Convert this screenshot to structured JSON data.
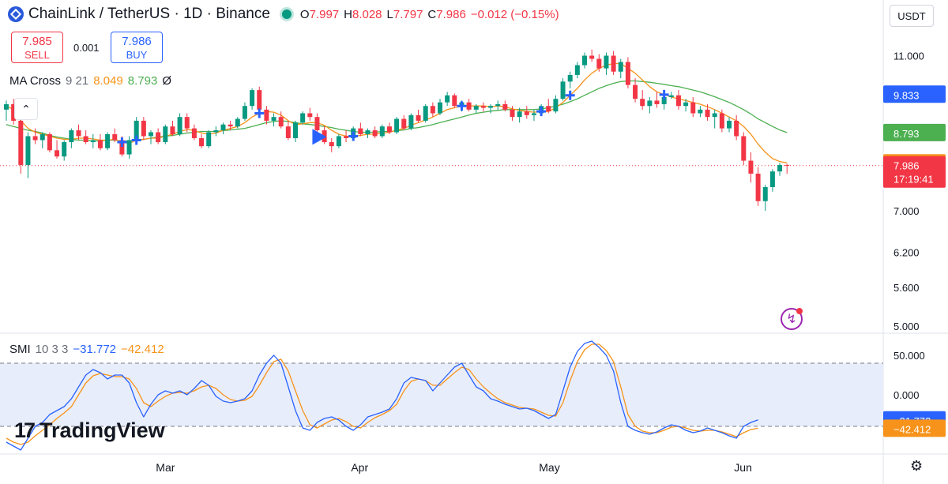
{
  "header": {
    "title": "ChainLink / TetherUS · 1D · Binance",
    "ohlc": [
      {
        "k": "O",
        "v": "7.997"
      },
      {
        "k": "H",
        "v": "8.028"
      },
      {
        "k": "L",
        "v": "7.797"
      },
      {
        "k": "C",
        "v": "7.986"
      },
      {
        "k": "",
        "v": "−0.012 (−0.15%)"
      }
    ],
    "currency": "USDT"
  },
  "trade": {
    "sell_price": "7.985",
    "sell_label": "SELL",
    "buy_price": "7.986",
    "buy_label": "BUY",
    "spread": "0.001"
  },
  "ma_legend": {
    "name": "MA Cross",
    "params": "9 21",
    "fast": "8.049",
    "slow": "8.793",
    "icon": "Ø"
  },
  "smi_legend": {
    "name": "SMI",
    "params": "10 3 3",
    "smi": "−31.772",
    "signal": "−42.412"
  },
  "brand": {
    "name": "TradingView",
    "mark": "17"
  },
  "icons": {
    "symbol": "chainlink-icon",
    "live": "live-dot-icon",
    "bolt": "bolt-icon",
    "settings": "gear-icon",
    "collapse": "chevron-up-icon"
  },
  "colors": {
    "up": "#089981",
    "down": "#f23645",
    "ma_fast": "#f7931a",
    "ma_slow": "#4caf50",
    "smi": "#2962ff",
    "signal": "#f7931a",
    "band": "#e8edfb"
  },
  "chart_data": [
    {
      "type": "candlestick",
      "title": "ChainLink / TetherUS · 1D · Binance",
      "x_labels": [
        "Mar",
        "Apr",
        "May",
        "Jun"
      ],
      "price_axis_ticks": [
        "11.000",
        "9.833",
        "7.000",
        "6.200",
        "5.600",
        "5.000"
      ],
      "log_scale": true,
      "ylim": [
        4.9,
        11.8
      ],
      "last_price": 7.986,
      "last_price_label": "7.986",
      "countdown": "17:19:41",
      "markers": [
        {
          "label": "9.833",
          "value": 9.833,
          "color": "#2962ff"
        },
        {
          "label": "8.793",
          "value": 8.793,
          "color": "#4caf50"
        },
        {
          "label": "8.049",
          "value": 8.049,
          "color": "#f7931a"
        }
      ],
      "candles": [
        [
          9.4,
          9.65,
          9.1,
          9.55
        ],
        [
          9.55,
          9.7,
          9.0,
          9.1
        ],
        [
          9.1,
          9.25,
          7.8,
          8.0
        ],
        [
          8.0,
          8.8,
          7.7,
          8.7
        ],
        [
          8.7,
          8.9,
          8.5,
          8.6
        ],
        [
          8.6,
          8.8,
          8.4,
          8.75
        ],
        [
          8.75,
          8.8,
          8.3,
          8.35
        ],
        [
          8.35,
          8.6,
          8.15,
          8.2
        ],
        [
          8.2,
          8.6,
          8.1,
          8.55
        ],
        [
          8.55,
          8.9,
          8.4,
          8.85
        ],
        [
          8.85,
          9.0,
          8.6,
          8.7
        ],
        [
          8.7,
          8.85,
          8.5,
          8.55
        ],
        [
          8.55,
          8.75,
          8.4,
          8.6
        ],
        [
          8.6,
          8.75,
          8.35,
          8.4
        ],
        [
          8.4,
          8.8,
          8.35,
          8.75
        ],
        [
          8.75,
          8.9,
          8.55,
          8.6
        ],
        [
          8.6,
          8.7,
          8.2,
          8.25
        ],
        [
          8.25,
          8.7,
          8.15,
          8.6
        ],
        [
          8.6,
          9.2,
          8.5,
          9.1
        ],
        [
          9.1,
          9.2,
          8.6,
          8.7
        ],
        [
          8.7,
          8.85,
          8.5,
          8.8
        ],
        [
          8.8,
          8.9,
          8.5,
          8.55
        ],
        [
          8.55,
          9.0,
          8.5,
          8.95
        ],
        [
          8.95,
          9.1,
          8.7,
          8.75
        ],
        [
          8.75,
          9.3,
          8.7,
          9.2
        ],
        [
          9.2,
          9.3,
          8.8,
          8.9
        ],
        [
          8.9,
          9.0,
          8.6,
          8.65
        ],
        [
          8.65,
          8.75,
          8.4,
          8.45
        ],
        [
          8.45,
          8.85,
          8.4,
          8.8
        ],
        [
          8.8,
          8.95,
          8.7,
          8.85
        ],
        [
          8.85,
          9.05,
          8.75,
          9.0
        ],
        [
          9.0,
          9.1,
          8.85,
          8.95
        ],
        [
          8.95,
          9.2,
          8.9,
          9.15
        ],
        [
          9.15,
          9.6,
          9.1,
          9.5
        ],
        [
          9.5,
          10.0,
          9.4,
          9.95
        ],
        [
          9.95,
          10.05,
          9.3,
          9.4
        ],
        [
          9.4,
          9.5,
          9.0,
          9.1
        ],
        [
          9.1,
          9.3,
          8.95,
          9.2
        ],
        [
          9.2,
          9.35,
          8.9,
          8.95
        ],
        [
          8.95,
          9.1,
          8.6,
          8.65
        ],
        [
          8.65,
          9.1,
          8.55,
          9.05
        ],
        [
          9.05,
          9.35,
          9.0,
          9.3
        ],
        [
          9.3,
          9.45,
          9.1,
          9.2
        ],
        [
          9.2,
          9.3,
          8.8,
          8.85
        ],
        [
          8.85,
          8.95,
          8.5,
          8.55
        ],
        [
          8.55,
          8.65,
          8.3,
          8.45
        ],
        [
          8.45,
          8.75,
          8.4,
          8.7
        ],
        [
          8.7,
          8.85,
          8.55,
          8.65
        ],
        [
          8.65,
          8.95,
          8.6,
          8.9
        ],
        [
          8.9,
          9.05,
          8.7,
          8.75
        ],
        [
          8.75,
          8.9,
          8.65,
          8.85
        ],
        [
          8.85,
          8.95,
          8.65,
          8.7
        ],
        [
          8.7,
          9.0,
          8.65,
          8.95
        ],
        [
          8.95,
          9.05,
          8.75,
          8.8
        ],
        [
          8.8,
          9.2,
          8.75,
          9.15
        ],
        [
          9.15,
          9.25,
          8.85,
          8.9
        ],
        [
          8.9,
          9.3,
          8.85,
          9.25
        ],
        [
          9.25,
          9.4,
          9.05,
          9.1
        ],
        [
          9.1,
          9.55,
          9.05,
          9.5
        ],
        [
          9.5,
          9.6,
          9.2,
          9.3
        ],
        [
          9.3,
          9.7,
          9.25,
          9.6
        ],
        [
          9.6,
          9.9,
          9.5,
          9.8
        ],
        [
          9.8,
          9.85,
          9.45,
          9.5
        ],
        [
          9.5,
          9.65,
          9.35,
          9.6
        ],
        [
          9.6,
          9.7,
          9.35,
          9.4
        ],
        [
          9.4,
          9.55,
          9.3,
          9.5
        ],
        [
          9.5,
          9.6,
          9.35,
          9.45
        ],
        [
          9.45,
          9.55,
          9.3,
          9.5
        ],
        [
          9.5,
          9.65,
          9.4,
          9.55
        ],
        [
          9.55,
          9.65,
          9.35,
          9.4
        ],
        [
          9.4,
          9.5,
          9.1,
          9.2
        ],
        [
          9.2,
          9.45,
          9.05,
          9.35
        ],
        [
          9.35,
          9.5,
          9.15,
          9.25
        ],
        [
          9.25,
          9.4,
          9.1,
          9.3
        ],
        [
          9.3,
          9.55,
          9.25,
          9.5
        ],
        [
          9.5,
          9.7,
          9.3,
          9.35
        ],
        [
          9.35,
          9.8,
          9.3,
          9.7
        ],
        [
          9.7,
          10.3,
          9.65,
          10.2
        ],
        [
          10.2,
          10.5,
          10.0,
          10.4
        ],
        [
          10.4,
          10.8,
          10.3,
          10.7
        ],
        [
          10.7,
          11.1,
          10.6,
          11.0
        ],
        [
          11.0,
          11.2,
          10.8,
          10.9
        ],
        [
          10.9,
          11.05,
          10.5,
          10.6
        ],
        [
          10.6,
          11.1,
          10.4,
          11.0
        ],
        [
          11.0,
          11.15,
          10.4,
          10.5
        ],
        [
          10.5,
          10.9,
          10.3,
          10.8
        ],
        [
          10.8,
          10.95,
          10.0,
          10.1
        ],
        [
          10.1,
          10.3,
          9.6,
          9.7
        ],
        [
          9.7,
          9.95,
          9.4,
          9.5
        ],
        [
          9.5,
          9.75,
          9.3,
          9.65
        ],
        [
          9.65,
          9.9,
          9.45,
          9.55
        ],
        [
          9.55,
          9.8,
          9.4,
          9.75
        ],
        [
          9.75,
          9.9,
          9.7,
          9.8
        ],
        [
          9.8,
          9.95,
          9.4,
          9.5
        ],
        [
          9.5,
          9.7,
          9.35,
          9.6
        ],
        [
          9.6,
          9.75,
          9.2,
          9.3
        ],
        [
          9.3,
          9.5,
          9.2,
          9.4
        ],
        [
          9.4,
          9.55,
          9.1,
          9.2
        ],
        [
          9.2,
          9.4,
          8.9,
          9.3
        ],
        [
          9.3,
          9.4,
          8.8,
          8.9
        ],
        [
          8.9,
          9.2,
          8.8,
          9.1
        ],
        [
          9.1,
          9.25,
          8.6,
          8.7
        ],
        [
          8.7,
          8.8,
          8.0,
          8.1
        ],
        [
          8.1,
          8.3,
          7.6,
          7.8
        ],
        [
          7.8,
          7.95,
          7.1,
          7.2
        ],
        [
          7.2,
          7.55,
          7.0,
          7.5
        ],
        [
          7.5,
          7.9,
          7.4,
          7.85
        ],
        [
          7.85,
          8.05,
          7.75,
          8.0
        ],
        [
          7.997,
          8.028,
          7.797,
          7.986
        ]
      ],
      "ma_fast": [
        9.5,
        9.4,
        9.1,
        8.9,
        8.8,
        8.75,
        8.7,
        8.65,
        8.62,
        8.62,
        8.65,
        8.65,
        8.63,
        8.6,
        8.6,
        8.62,
        8.55,
        8.52,
        8.6,
        8.62,
        8.65,
        8.65,
        8.7,
        8.75,
        8.82,
        8.87,
        8.85,
        8.78,
        8.75,
        8.78,
        8.85,
        8.9,
        8.95,
        9.05,
        9.2,
        9.3,
        9.35,
        9.33,
        9.25,
        9.1,
        9.0,
        9.02,
        9.05,
        9.05,
        8.98,
        8.85,
        8.75,
        8.7,
        8.7,
        8.72,
        8.75,
        8.75,
        8.78,
        8.8,
        8.85,
        8.9,
        8.98,
        9.05,
        9.12,
        9.2,
        9.3,
        9.4,
        9.45,
        9.5,
        9.5,
        9.5,
        9.5,
        9.48,
        9.5,
        9.48,
        9.42,
        9.38,
        9.35,
        9.33,
        9.35,
        9.35,
        9.45,
        9.6,
        9.8,
        10.0,
        10.25,
        10.45,
        10.6,
        10.7,
        10.75,
        10.75,
        10.6,
        10.45,
        10.25,
        10.05,
        9.9,
        9.82,
        9.75,
        9.7,
        9.65,
        9.6,
        9.55,
        9.48,
        9.4,
        9.3,
        9.2,
        9.1,
        8.95,
        8.75,
        8.5,
        8.3,
        8.15,
        8.08,
        8.049
      ],
      "ma_slow": [
        9.0,
        8.95,
        8.9,
        8.85,
        8.82,
        8.78,
        8.72,
        8.68,
        8.65,
        8.62,
        8.6,
        8.6,
        8.58,
        8.58,
        8.6,
        8.6,
        8.58,
        8.58,
        8.6,
        8.62,
        8.65,
        8.68,
        8.7,
        8.72,
        8.75,
        8.78,
        8.8,
        8.82,
        8.82,
        8.82,
        8.84,
        8.86,
        8.88,
        8.9,
        8.95,
        9.0,
        9.05,
        9.08,
        9.1,
        9.08,
        9.05,
        9.02,
        9.0,
        8.98,
        8.95,
        8.92,
        8.88,
        8.85,
        8.82,
        8.8,
        8.8,
        8.8,
        8.82,
        8.82,
        8.84,
        8.86,
        8.9,
        8.92,
        8.96,
        9.0,
        9.05,
        9.1,
        9.15,
        9.2,
        9.25,
        9.3,
        9.33,
        9.36,
        9.38,
        9.4,
        9.4,
        9.4,
        9.4,
        9.4,
        9.42,
        9.45,
        9.5,
        9.55,
        9.62,
        9.7,
        9.8,
        9.9,
        10.0,
        10.08,
        10.15,
        10.2,
        10.22,
        10.22,
        10.2,
        10.18,
        10.15,
        10.12,
        10.08,
        10.05,
        10.0,
        9.95,
        9.9,
        9.83,
        9.76,
        9.68,
        9.6,
        9.5,
        9.4,
        9.28,
        9.15,
        9.05,
        8.95,
        8.86,
        8.793
      ],
      "signals": [
        {
          "i": 16,
          "type": "cross-up"
        },
        {
          "i": 18,
          "type": "cross-down"
        },
        {
          "i": 35,
          "type": "cross-down"
        },
        {
          "i": 43,
          "type": "arrow-buy"
        },
        {
          "i": 48,
          "type": "cross-up"
        },
        {
          "i": 63,
          "type": "cross-up"
        },
        {
          "i": 74,
          "type": "cross-up"
        },
        {
          "i": 78,
          "type": "cross-up"
        },
        {
          "i": 91,
          "type": "cross-down"
        }
      ]
    },
    {
      "type": "line",
      "title": "SMI 10 3 3",
      "ylim": [
        -75,
        75
      ],
      "axis_ticks": [
        "50.000",
        "0.000"
      ],
      "band": [
        -40,
        40
      ],
      "markers": [
        {
          "label": "−31.772",
          "value": -31.772,
          "color": "#2962ff"
        },
        {
          "label": "−42.412",
          "value": -42.412,
          "color": "#f7931a"
        }
      ],
      "series": [
        {
          "name": "SMI",
          "values": [
            -60,
            -65,
            -70,
            -55,
            -40,
            -35,
            -25,
            -20,
            -15,
            -5,
            10,
            25,
            32,
            28,
            20,
            25,
            25,
            15,
            -10,
            -28,
            -12,
            0,
            5,
            2,
            5,
            0,
            8,
            18,
            12,
            -2,
            -8,
            -10,
            -8,
            -5,
            5,
            25,
            40,
            50,
            40,
            10,
            -20,
            -42,
            -45,
            -35,
            -30,
            -28,
            -32,
            -40,
            -45,
            -38,
            -28,
            -25,
            -22,
            -18,
            -5,
            15,
            22,
            20,
            18,
            5,
            15,
            25,
            35,
            40,
            25,
            10,
            5,
            -5,
            -8,
            -12,
            -15,
            -18,
            -17,
            -20,
            -25,
            -30,
            -25,
            5,
            35,
            55,
            65,
            68,
            60,
            50,
            30,
            -10,
            -40,
            -45,
            -48,
            -50,
            -47,
            -42,
            -38,
            -40,
            -45,
            -48,
            -46,
            -42,
            -45,
            -48,
            -52,
            -55,
            -40,
            -35,
            -31.772
          ]
        },
        {
          "name": "Signal",
          "values": [
            -55,
            -60,
            -63,
            -60,
            -52,
            -45,
            -38,
            -30,
            -23,
            -15,
            0,
            15,
            24,
            27,
            25,
            23,
            23,
            20,
            8,
            -10,
            -15,
            -8,
            -2,
            2,
            3,
            2,
            5,
            10,
            12,
            8,
            0,
            -6,
            -8,
            -7,
            -2,
            12,
            28,
            42,
            45,
            30,
            5,
            -20,
            -38,
            -42,
            -37,
            -32,
            -30,
            -34,
            -40,
            -42,
            -35,
            -29,
            -25,
            -20,
            -12,
            5,
            17,
            20,
            18,
            12,
            12,
            20,
            28,
            35,
            32,
            20,
            10,
            2,
            -5,
            -10,
            -13,
            -16,
            -17,
            -18,
            -22,
            -26,
            -27,
            -10,
            18,
            42,
            57,
            64,
            64,
            56,
            42,
            10,
            -25,
            -40,
            -46,
            -48,
            -48,
            -45,
            -41,
            -40,
            -42,
            -45,
            -46,
            -45,
            -45,
            -47,
            -50,
            -53,
            -48,
            -44,
            -42.412
          ]
        }
      ]
    }
  ]
}
